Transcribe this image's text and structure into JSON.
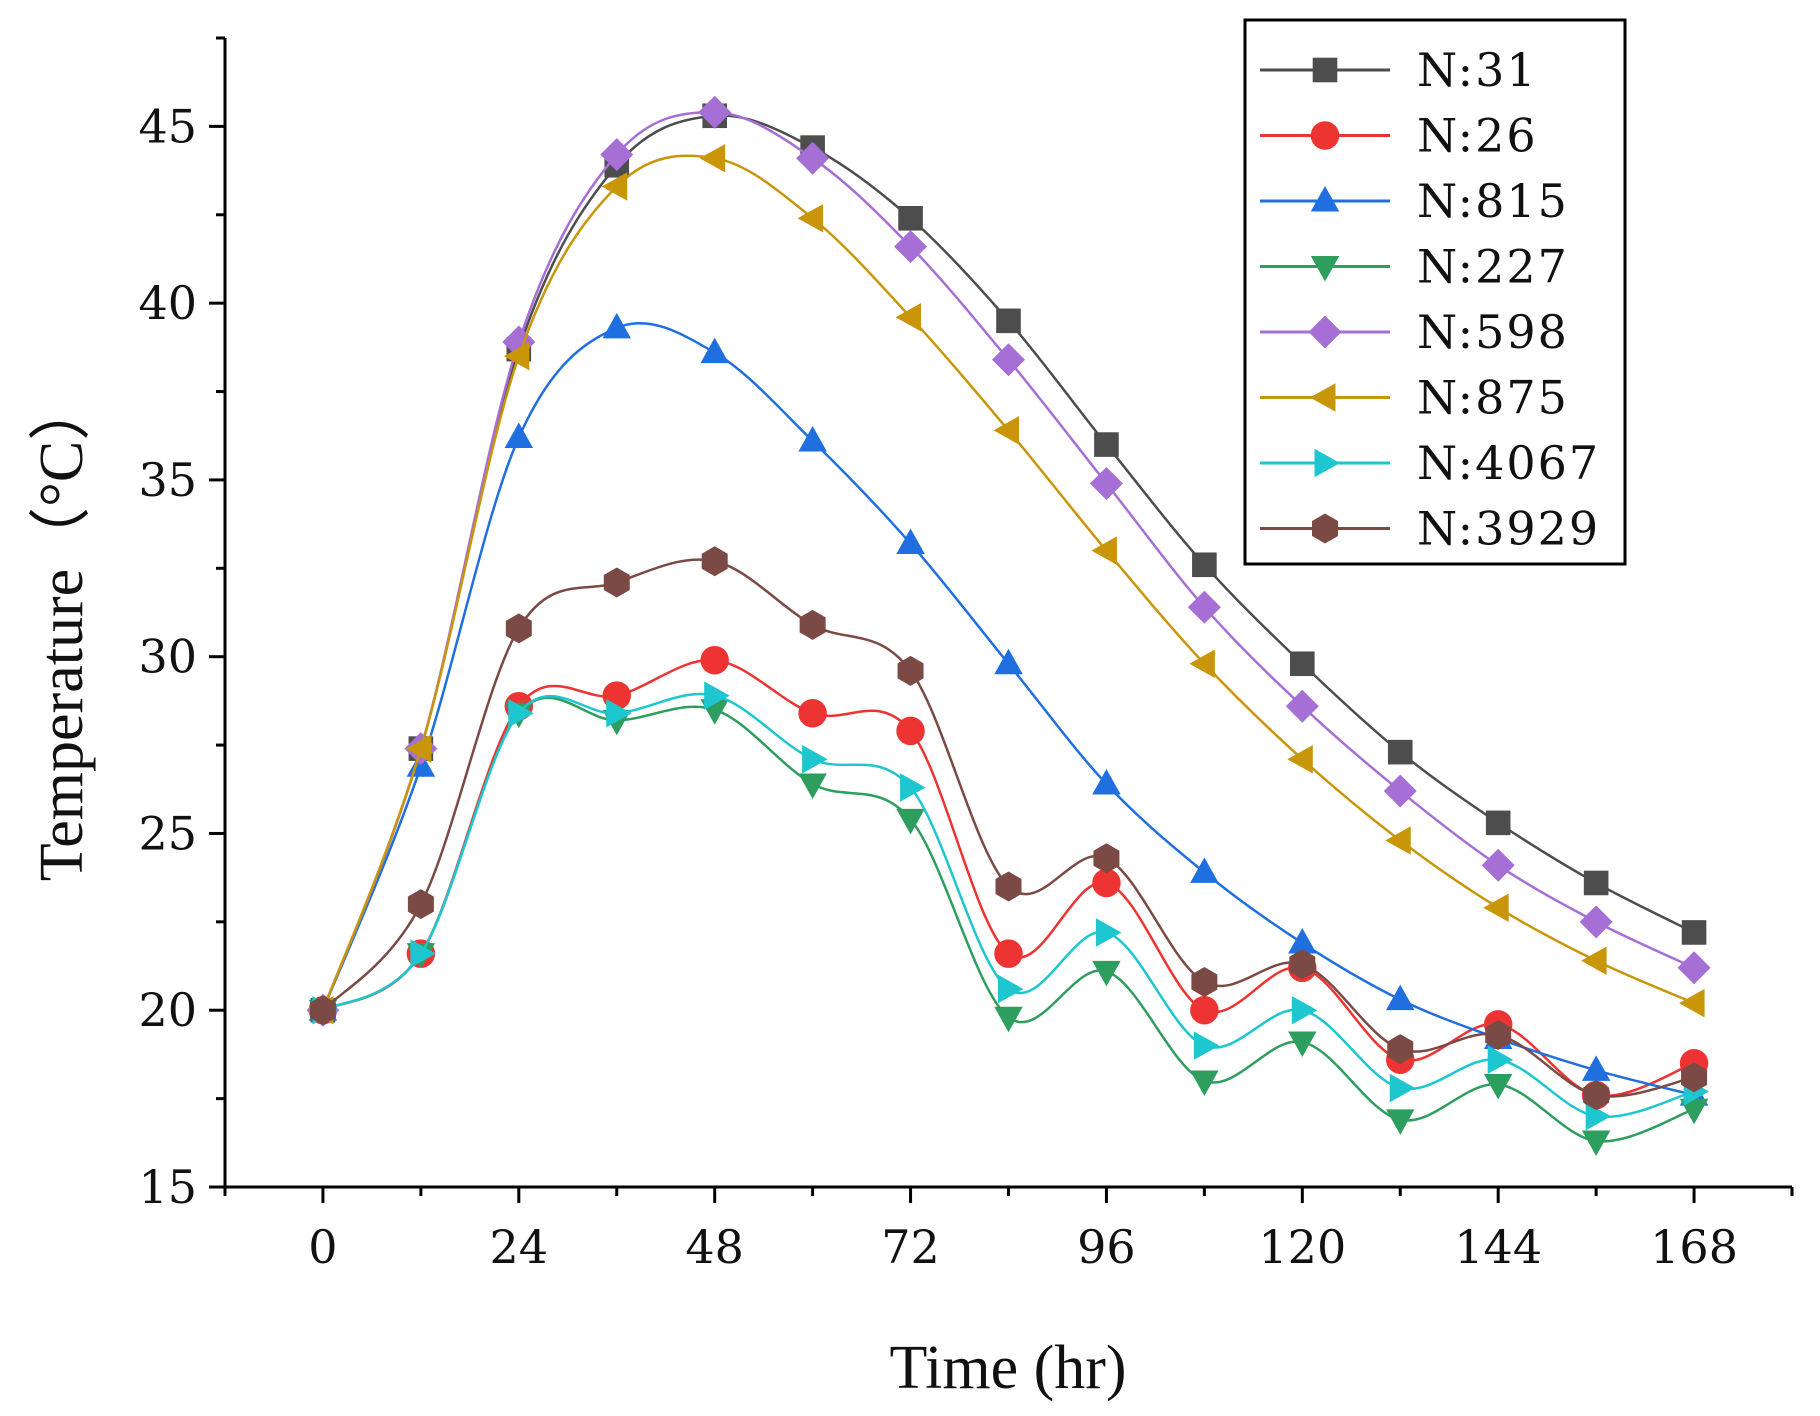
{
  "chart_data": {
    "type": "line",
    "title": "",
    "xlabel": "Time (hr)",
    "ylabel": "Temperature（°C）",
    "xlim": [
      -12,
      180
    ],
    "ylim": [
      15,
      47.5
    ],
    "xticks": [
      0,
      24,
      48,
      72,
      96,
      120,
      144,
      168
    ],
    "yticks": [
      15,
      20,
      25,
      30,
      35,
      40,
      45
    ],
    "grid": false,
    "legend_position": "top-right",
    "x": [
      0,
      12,
      24,
      36,
      48,
      60,
      72,
      84,
      96,
      108,
      120,
      132,
      144,
      156,
      168
    ],
    "series": [
      {
        "name": "N:31",
        "color": "#4d4d4d",
        "marker": "square",
        "values": [
          20.0,
          27.4,
          38.7,
          43.9,
          45.3,
          44.4,
          42.4,
          39.5,
          36.0,
          32.6,
          29.8,
          27.3,
          25.3,
          23.6,
          22.2
        ]
      },
      {
        "name": "N:26",
        "color": "#ee3333",
        "marker": "circle",
        "values": [
          20.0,
          21.6,
          28.6,
          28.9,
          29.9,
          28.4,
          27.9,
          21.6,
          23.6,
          20.0,
          21.2,
          18.6,
          19.6,
          17.6,
          18.5
        ]
      },
      {
        "name": "N:815",
        "color": "#1f6fe0",
        "marker": "triangle-up",
        "values": [
          20.0,
          26.9,
          36.2,
          39.3,
          38.6,
          36.1,
          33.2,
          29.8,
          26.4,
          23.9,
          21.9,
          20.3,
          19.2,
          18.3,
          17.6
        ]
      },
      {
        "name": "N:227",
        "color": "#2e9e5e",
        "marker": "triangle-down",
        "values": [
          20.0,
          21.6,
          28.4,
          28.2,
          28.5,
          26.4,
          25.4,
          19.8,
          21.1,
          18.0,
          19.1,
          16.9,
          17.9,
          16.3,
          17.2
        ]
      },
      {
        "name": "N:598",
        "color": "#a66fd6",
        "marker": "diamond",
        "values": [
          20.0,
          27.4,
          38.9,
          44.2,
          45.4,
          44.1,
          41.6,
          38.4,
          34.9,
          31.4,
          28.6,
          26.2,
          24.1,
          22.5,
          21.2
        ]
      },
      {
        "name": "N:875",
        "color": "#c9960a",
        "marker": "triangle-left",
        "values": [
          20.0,
          27.4,
          38.5,
          43.3,
          44.1,
          42.4,
          39.6,
          36.4,
          33.0,
          29.8,
          27.1,
          24.8,
          22.9,
          21.4,
          20.2
        ]
      },
      {
        "name": "N:4067",
        "color": "#1ec6cf",
        "marker": "triangle-right",
        "values": [
          20.0,
          21.6,
          28.4,
          28.4,
          28.9,
          27.1,
          26.3,
          20.6,
          22.2,
          19.0,
          20.0,
          17.8,
          18.6,
          17.0,
          17.7
        ]
      },
      {
        "name": "N:3929",
        "color": "#7b4a44",
        "marker": "hexagon",
        "values": [
          20.0,
          23.0,
          30.8,
          32.1,
          32.7,
          30.9,
          29.6,
          23.5,
          24.3,
          20.8,
          21.3,
          18.9,
          19.3,
          17.6,
          18.1
        ]
      }
    ]
  }
}
